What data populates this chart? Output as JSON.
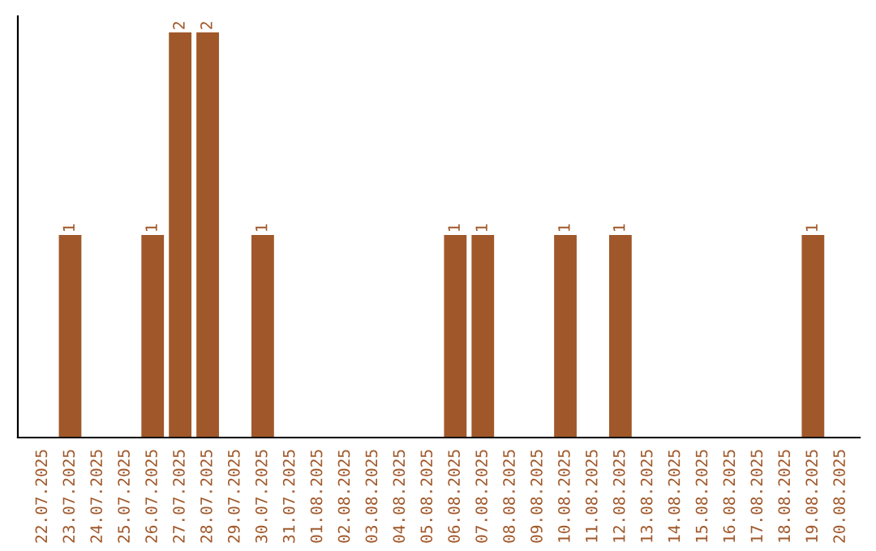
{
  "chart_data": {
    "type": "bar",
    "categories": [
      "22.07.2025",
      "23.07.2025",
      "24.07.2025",
      "25.07.2025",
      "26.07.2025",
      "27.07.2025",
      "28.07.2025",
      "29.07.2025",
      "30.07.2025",
      "31.07.2025",
      "01.08.2025",
      "02.08.2025",
      "03.08.2025",
      "04.08.2025",
      "05.08.2025",
      "06.08.2025",
      "07.08.2025",
      "08.08.2025",
      "09.08.2025",
      "10.08.2025",
      "11.08.2025",
      "12.08.2025",
      "13.08.2025",
      "14.08.2025",
      "15.08.2025",
      "16.08.2025",
      "17.08.2025",
      "18.08.2025",
      "19.08.2025",
      "20.08.2025"
    ],
    "values": [
      0,
      1,
      0,
      0,
      1,
      2,
      2,
      0,
      1,
      0,
      0,
      0,
      0,
      0,
      0,
      1,
      1,
      0,
      0,
      1,
      0,
      1,
      0,
      0,
      0,
      0,
      0,
      0,
      1,
      0
    ],
    "value_labels": [
      null,
      "1",
      null,
      null,
      "1",
      "2",
      "2",
      null,
      "1",
      null,
      null,
      null,
      null,
      null,
      null,
      "1",
      "1",
      null,
      null,
      "1",
      null,
      "1",
      null,
      null,
      null,
      null,
      null,
      null,
      "1",
      null
    ],
    "color": "#a0582a",
    "grid": false,
    "legend": false
  }
}
